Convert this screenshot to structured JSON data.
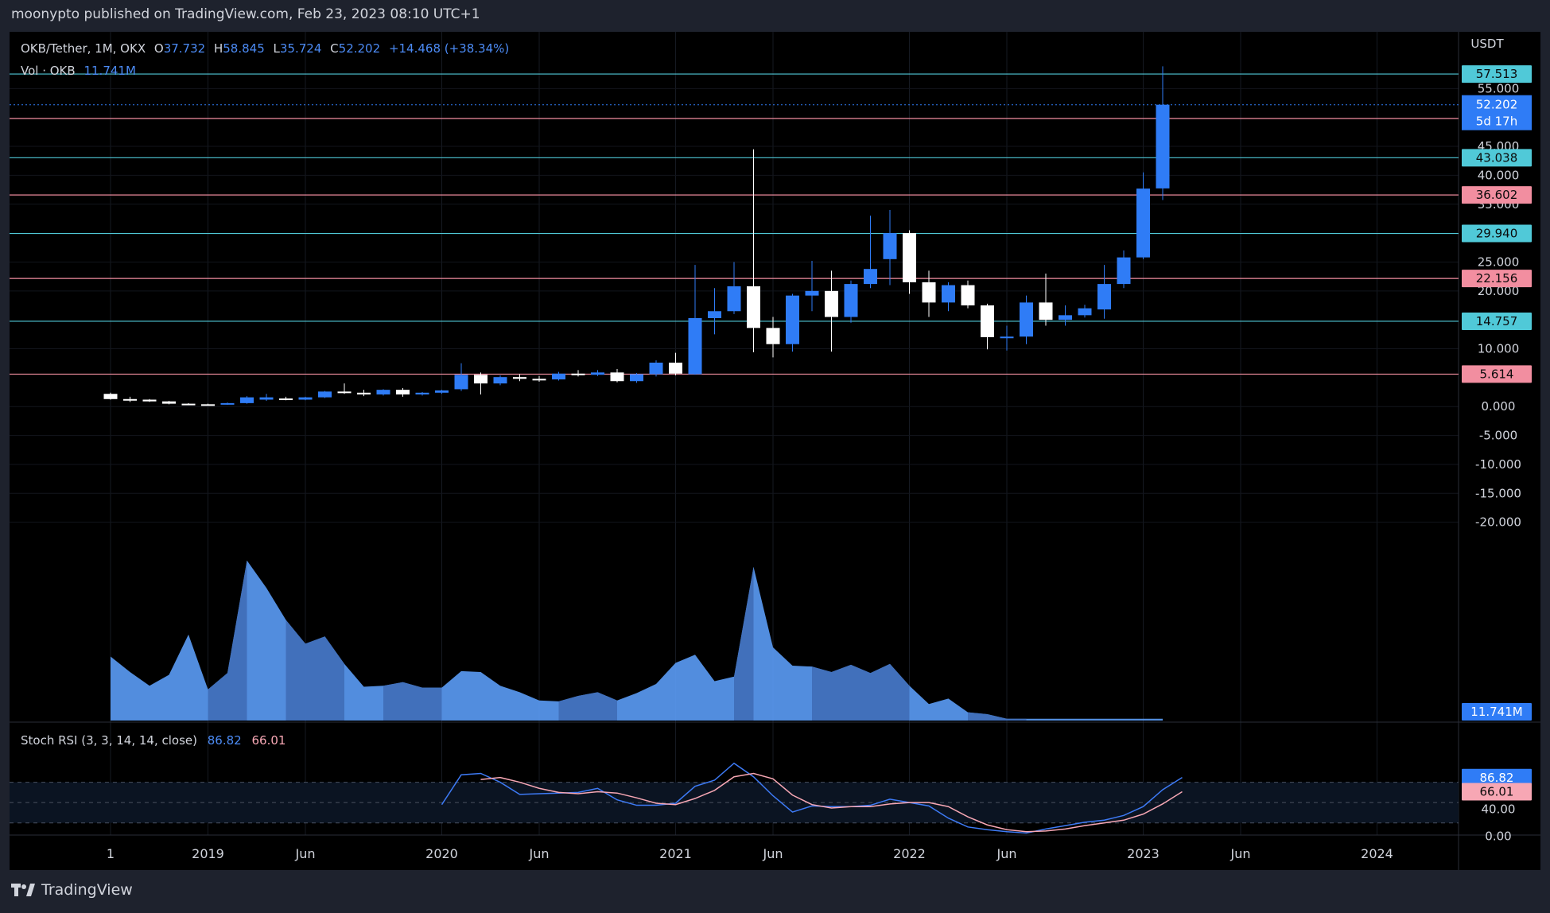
{
  "header": {
    "publisher": "moonypto published on TradingView.com, Feb 23, 2023 08:10 UTC+1"
  },
  "footer": {
    "brand": "TradingView",
    "logo_icon": "tradingview-logo-icon"
  },
  "colors": {
    "bg": "#000000",
    "frame": "#1e222d",
    "bull": "#2f7cf6",
    "bear": "#ffffff",
    "support": "#f28ea0",
    "resistance": "#50c9d8",
    "volume_light": "#5b9cf6",
    "volume_dark": "#3e6bb5",
    "stoch_k": "#3d7af5",
    "stoch_d": "#f7a7b4",
    "axis_text": "#d1d4dc"
  },
  "legend": {
    "symbol": "OKB/Tether, 1M, OKX",
    "o_label": "O",
    "o": "37.732",
    "h_label": "H",
    "h": "58.845",
    "l_label": "L",
    "l": "35.724",
    "c_label": "C",
    "c": "52.202",
    "change": "+14.468 (+38.34%)",
    "vol_label": "Vol · OKB",
    "vol": "11.741M"
  },
  "chart_data": [
    {
      "type": "candlestick",
      "title": "OKB/Tether, 1M, OKX",
      "ylabel": "USDT",
      "ylim": [
        -25,
        60
      ],
      "y_ticks": [
        "55.000",
        "45.000",
        "40.000",
        "35.000",
        "25.000",
        "20.000",
        "10.000",
        "0.000",
        "-5.000",
        "-10.000",
        "-15.000",
        "-20.000"
      ],
      "x_ticks": [
        {
          "label": "1",
          "index": 0
        },
        {
          "label": "2019",
          "index": 5
        },
        {
          "label": "Jun",
          "index": 10
        },
        {
          "label": "2020",
          "index": 17
        },
        {
          "label": "Jun",
          "index": 22
        },
        {
          "label": "2021",
          "index": 29
        },
        {
          "label": "Jun",
          "index": 34
        },
        {
          "label": "2022",
          "index": 41
        },
        {
          "label": "Jun",
          "index": 46
        },
        {
          "label": "2023",
          "index": 53
        },
        {
          "label": "Jun",
          "index": 58
        },
        {
          "label": "2024",
          "index": 65
        }
      ],
      "candles": [
        {
          "o": 2.2,
          "h": 2.4,
          "l": 1.2,
          "c": 1.3
        },
        {
          "o": 1.3,
          "h": 1.7,
          "l": 0.8,
          "c": 1.2
        },
        {
          "o": 1.2,
          "h": 1.3,
          "l": 0.8,
          "c": 0.9
        },
        {
          "o": 0.9,
          "h": 1.0,
          "l": 0.4,
          "c": 0.5
        },
        {
          "o": 0.5,
          "h": 0.6,
          "l": 0.3,
          "c": 0.4
        },
        {
          "o": 0.4,
          "h": 0.5,
          "l": 0.3,
          "c": 0.35
        },
        {
          "o": 0.35,
          "h": 0.7,
          "l": 0.3,
          "c": 0.6
        },
        {
          "o": 0.6,
          "h": 1.8,
          "l": 0.5,
          "c": 1.6
        },
        {
          "o": 1.2,
          "h": 2.2,
          "l": 1.0,
          "c": 1.6
        },
        {
          "o": 1.4,
          "h": 1.7,
          "l": 1.1,
          "c": 1.2
        },
        {
          "o": 1.2,
          "h": 1.7,
          "l": 1.1,
          "c": 1.6
        },
        {
          "o": 1.6,
          "h": 2.7,
          "l": 1.5,
          "c": 2.6
        },
        {
          "o": 2.6,
          "h": 4.0,
          "l": 2.2,
          "c": 2.4
        },
        {
          "o": 2.4,
          "h": 2.9,
          "l": 1.8,
          "c": 2.1
        },
        {
          "o": 2.1,
          "h": 3.0,
          "l": 1.9,
          "c": 2.9
        },
        {
          "o": 2.9,
          "h": 3.2,
          "l": 1.7,
          "c": 2.1
        },
        {
          "o": 2.1,
          "h": 2.5,
          "l": 1.9,
          "c": 2.4
        },
        {
          "o": 2.4,
          "h": 2.9,
          "l": 2.2,
          "c": 2.8
        },
        {
          "o": 3.0,
          "h": 7.5,
          "l": 2.7,
          "c": 5.5
        },
        {
          "o": 5.5,
          "h": 5.9,
          "l": 2.1,
          "c": 4.0
        },
        {
          "o": 4.0,
          "h": 5.4,
          "l": 3.7,
          "c": 5.1
        },
        {
          "o": 5.1,
          "h": 5.6,
          "l": 4.4,
          "c": 4.8
        },
        {
          "o": 4.8,
          "h": 5.3,
          "l": 4.3,
          "c": 4.7
        },
        {
          "o": 4.7,
          "h": 6.0,
          "l": 4.5,
          "c": 5.7
        },
        {
          "o": 5.7,
          "h": 6.3,
          "l": 5.2,
          "c": 5.5
        },
        {
          "o": 5.5,
          "h": 6.3,
          "l": 5.3,
          "c": 5.9
        },
        {
          "o": 5.9,
          "h": 6.5,
          "l": 4.2,
          "c": 4.4
        },
        {
          "o": 4.4,
          "h": 5.8,
          "l": 4.1,
          "c": 5.6
        },
        {
          "o": 5.6,
          "h": 8.0,
          "l": 5.2,
          "c": 7.6
        },
        {
          "o": 7.6,
          "h": 9.3,
          "l": 5.4,
          "c": 5.7
        },
        {
          "o": 5.6,
          "h": 24.5,
          "l": 5.5,
          "c": 15.3
        },
        {
          "o": 15.3,
          "h": 20.5,
          "l": 12.5,
          "c": 16.5
        },
        {
          "o": 16.5,
          "h": 25.0,
          "l": 16.0,
          "c": 20.8
        },
        {
          "o": 20.8,
          "h": 44.5,
          "l": 9.4,
          "c": 13.6
        },
        {
          "o": 13.6,
          "h": 15.5,
          "l": 8.5,
          "c": 10.8
        },
        {
          "o": 10.8,
          "h": 19.5,
          "l": 9.5,
          "c": 19.2
        },
        {
          "o": 19.2,
          "h": 25.2,
          "l": 16.5,
          "c": 20.0
        },
        {
          "o": 20.0,
          "h": 23.5,
          "l": 9.5,
          "c": 15.5
        },
        {
          "o": 15.5,
          "h": 21.8,
          "l": 14.5,
          "c": 21.2
        },
        {
          "o": 21.2,
          "h": 33.0,
          "l": 20.5,
          "c": 23.8
        },
        {
          "o": 25.5,
          "h": 34.0,
          "l": 21.0,
          "c": 30.0
        },
        {
          "o": 30.0,
          "h": 30.5,
          "l": 19.5,
          "c": 21.5
        },
        {
          "o": 21.5,
          "h": 23.5,
          "l": 15.5,
          "c": 18.0
        },
        {
          "o": 18.0,
          "h": 21.5,
          "l": 16.5,
          "c": 21.0
        },
        {
          "o": 21.0,
          "h": 21.8,
          "l": 17.0,
          "c": 17.5
        },
        {
          "o": 17.5,
          "h": 17.8,
          "l": 9.9,
          "c": 12.0
        },
        {
          "o": 12.0,
          "h": 14.0,
          "l": 9.7,
          "c": 12.1
        },
        {
          "o": 12.1,
          "h": 19.2,
          "l": 10.8,
          "c": 18.0
        },
        {
          "o": 18.0,
          "h": 23.0,
          "l": 14.0,
          "c": 15.0
        },
        {
          "o": 15.0,
          "h": 17.5,
          "l": 14.0,
          "c": 15.8
        },
        {
          "o": 15.8,
          "h": 17.6,
          "l": 15.4,
          "c": 17.0
        },
        {
          "o": 16.8,
          "h": 24.5,
          "l": 15.2,
          "c": 21.2
        },
        {
          "o": 21.2,
          "h": 27.0,
          "l": 20.5,
          "c": 25.8
        },
        {
          "o": 25.8,
          "h": 40.5,
          "l": 25.5,
          "c": 37.7
        },
        {
          "o": 37.732,
          "h": 58.845,
          "l": 35.724,
          "c": 52.202
        }
      ],
      "horizontal_lines": [
        {
          "value": "57.513",
          "kind": "resistance"
        },
        {
          "value": "49.822",
          "kind": "support"
        },
        {
          "value": "43.038",
          "kind": "resistance"
        },
        {
          "value": "36.602",
          "kind": "support"
        },
        {
          "value": "29.940",
          "kind": "resistance"
        },
        {
          "value": "22.156",
          "kind": "support"
        },
        {
          "value": "14.757",
          "kind": "resistance"
        },
        {
          "value": "5.614",
          "kind": "support"
        }
      ],
      "last_price": {
        "value": "52.202",
        "countdown": "5d 17h"
      }
    },
    {
      "type": "area",
      "title": "Vol · OKB",
      "last_value": "11.741M",
      "values": [
        70,
        53,
        38,
        50,
        94,
        34,
        52,
        175,
        145,
        110,
        84,
        92,
        62,
        37,
        38,
        42,
        36,
        36,
        54,
        53,
        38,
        31,
        22,
        21,
        27,
        31,
        22,
        30,
        40,
        63,
        72,
        43,
        48,
        168,
        80,
        60,
        59,
        53,
        61,
        52,
        62,
        38,
        18,
        24,
        9,
        7,
        2,
        2,
        2,
        2,
        2,
        2,
        2,
        2,
        2
      ]
    },
    {
      "type": "line",
      "title": "Stoch RSI (3, 3, 14, 14, close)",
      "k_value": "86.82",
      "d_value": "66.01",
      "ylim": [
        -5,
        110
      ],
      "y_ticks": [
        "40.00",
        "0.00"
      ],
      "band": {
        "upper": 80,
        "middle": 50,
        "lower": 20
      },
      "start_index": 17,
      "series": [
        {
          "name": "%K",
          "values": [
            47,
            91,
            93,
            80,
            62,
            63,
            64,
            65,
            71,
            54,
            46,
            46,
            49,
            74,
            83,
            108,
            88,
            60,
            36,
            45,
            44,
            44,
            46,
            55,
            50,
            45,
            27,
            14,
            10,
            7,
            5,
            11,
            16,
            21,
            24,
            31,
            44,
            69,
            87
          ]
        },
        {
          "name": "%D",
          "values": [
            null,
            null,
            84,
            87,
            80,
            71,
            65,
            63,
            66,
            64,
            57,
            49,
            47,
            56,
            68,
            88,
            93,
            85,
            61,
            47,
            42,
            44,
            44,
            48,
            50,
            50,
            44,
            29,
            17,
            10,
            7,
            8,
            11,
            16,
            20,
            24,
            33,
            48,
            66
          ]
        }
      ]
    }
  ]
}
